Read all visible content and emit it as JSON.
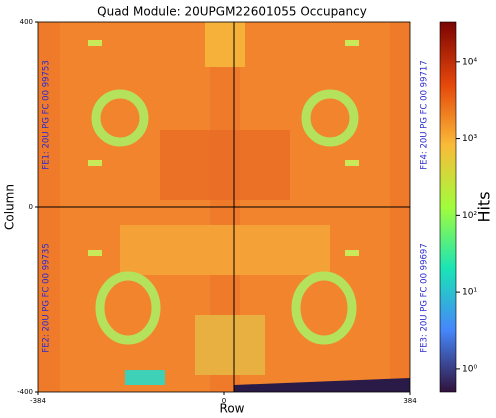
{
  "chart_data": {
    "type": "heatmap",
    "title": "Quad Module: 20UPGM22601055 Occupancy",
    "x_label": "Row",
    "y_label": "Column",
    "xlim": [
      -384,
      384
    ],
    "xticks": [
      -384,
      0,
      384
    ],
    "ylim": [
      -400,
      400
    ],
    "yticks": [
      -400,
      0,
      400
    ],
    "annotations": [
      "FE1: 20U PG FC 00 99753",
      "FE2: 20U PG FC 00 99735",
      "FE3: 20U PG FC 00 99697",
      "FE4: 20U PG FC 00 99717"
    ],
    "colorbar": {
      "label": "Hits",
      "log_scale": true,
      "clim": [
        0.5,
        33000
      ],
      "ticks": [
        {
          "value": 1,
          "label": "10⁰"
        },
        {
          "value": 10,
          "label": "10¹"
        },
        {
          "value": 100,
          "label": "10²"
        },
        {
          "value": 1000,
          "label": "10³"
        },
        {
          "value": 10000,
          "label": "10⁴"
        }
      ],
      "colors": [
        "#30123b",
        "#4686fb",
        "#1ae4b6",
        "#a2fc3c",
        "#fabb39",
        "#e4460a",
        "#7a0403"
      ]
    }
  }
}
